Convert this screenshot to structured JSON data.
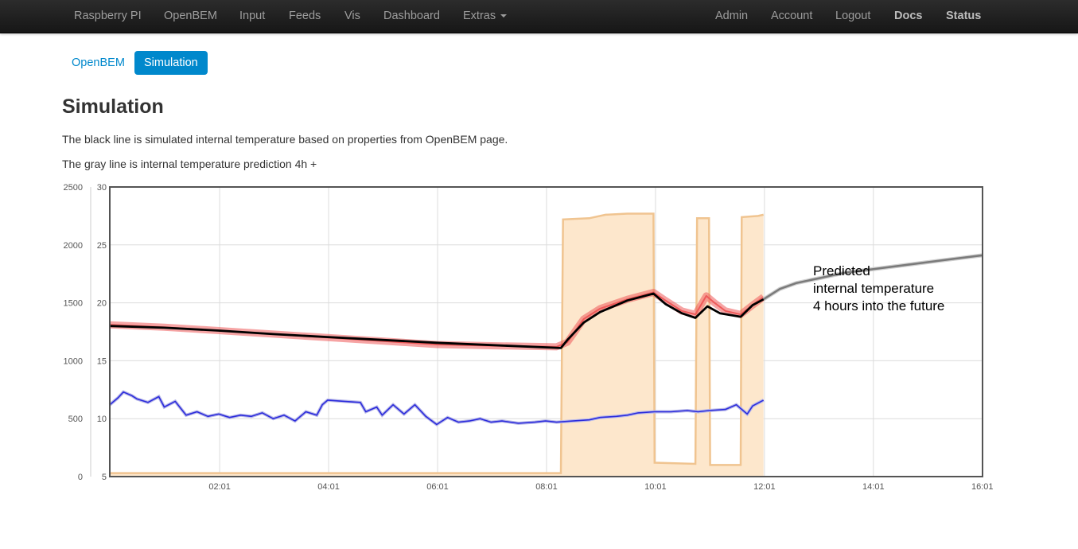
{
  "navbar": {
    "left": [
      {
        "label": "Raspberry PI"
      },
      {
        "label": "OpenBEM"
      },
      {
        "label": "Input"
      },
      {
        "label": "Feeds"
      },
      {
        "label": "Vis"
      },
      {
        "label": "Dashboard"
      },
      {
        "label": "Extras"
      }
    ],
    "right": [
      {
        "label": "Admin"
      },
      {
        "label": "Account"
      },
      {
        "label": "Logout"
      },
      {
        "label": "Docs"
      },
      {
        "label": "Status"
      }
    ]
  },
  "subnav": {
    "tabs": [
      {
        "label": "OpenBEM",
        "active": false
      },
      {
        "label": "Simulation",
        "active": true
      }
    ]
  },
  "page": {
    "title": "Simulation",
    "desc1": "The black line is simulated internal temperature based on properties from OpenBEM page.",
    "desc2": "The gray line is internal temperature prediction 4h +"
  },
  "chart_data": {
    "type": "line",
    "annotation": [
      "Predicted",
      "internal temperature",
      "4 hours into the future"
    ],
    "x_ticks": [
      "02:01",
      "04:01",
      "06:01",
      "08:01",
      "10:01",
      "12:01",
      "14:01",
      "16:01"
    ],
    "xlim_hours": [
      0.0,
      16.02
    ],
    "y_left": {
      "ticks": [
        0,
        500,
        1000,
        1500,
        2000,
        2500
      ],
      "range": [
        0,
        2500
      ]
    },
    "y_right": {
      "ticks": [
        5,
        10,
        15,
        20,
        25,
        30
      ],
      "range": [
        5,
        30
      ]
    },
    "grid": true,
    "colors": {
      "power": "#f0c490",
      "power_fill": "#fde7cc",
      "measured": "#ee5a5a",
      "simulated": "#000000",
      "prediction": "#7a7a7a",
      "external": "#2b2bdc"
    },
    "series": [
      {
        "key": "power",
        "axis": "left",
        "points": [
          [
            0,
            30
          ],
          [
            8.28,
            30
          ],
          [
            8.32,
            2220
          ],
          [
            8.8,
            2230
          ],
          [
            9.1,
            2260
          ],
          [
            9.5,
            2270
          ],
          [
            9.98,
            2270
          ],
          [
            10.0,
            120
          ],
          [
            10.75,
            110
          ],
          [
            10.78,
            2230
          ],
          [
            11.0,
            2230
          ],
          [
            11.02,
            100
          ],
          [
            11.58,
            100
          ],
          [
            11.6,
            2240
          ],
          [
            11.9,
            2250
          ],
          [
            12.0,
            2260
          ]
        ]
      },
      {
        "key": "measured",
        "axis": "right",
        "points": [
          [
            0,
            18.1
          ],
          [
            1,
            17.9
          ],
          [
            2,
            17.6
          ],
          [
            3,
            17.3
          ],
          [
            4,
            17.0
          ],
          [
            5,
            16.7
          ],
          [
            6,
            16.4
          ],
          [
            7,
            16.3
          ],
          [
            8.2,
            16.2
          ],
          [
            8.4,
            16.6
          ],
          [
            8.7,
            18.6
          ],
          [
            9.0,
            19.5
          ],
          [
            9.5,
            20.3
          ],
          [
            9.98,
            20.9
          ],
          [
            10.2,
            20.2
          ],
          [
            10.5,
            19.3
          ],
          [
            10.75,
            19.0
          ],
          [
            10.95,
            20.6
          ],
          [
            11.1,
            20.0
          ],
          [
            11.3,
            19.3
          ],
          [
            11.58,
            19.0
          ],
          [
            11.8,
            19.8
          ],
          [
            12.0,
            20.5
          ]
        ]
      },
      {
        "key": "simulated",
        "axis": "right",
        "points": [
          [
            0,
            18.0
          ],
          [
            1,
            17.85
          ],
          [
            2,
            17.6
          ],
          [
            3,
            17.3
          ],
          [
            4,
            17.05
          ],
          [
            5,
            16.8
          ],
          [
            6,
            16.55
          ],
          [
            7,
            16.35
          ],
          [
            8.28,
            16.1
          ],
          [
            8.4,
            16.8
          ],
          [
            8.7,
            18.3
          ],
          [
            9.0,
            19.2
          ],
          [
            9.5,
            20.2
          ],
          [
            9.98,
            20.8
          ],
          [
            10.2,
            19.9
          ],
          [
            10.5,
            19.1
          ],
          [
            10.75,
            18.7
          ],
          [
            10.97,
            19.7
          ],
          [
            11.2,
            19.1
          ],
          [
            11.58,
            18.8
          ],
          [
            11.8,
            19.8
          ],
          [
            12.0,
            20.3
          ]
        ]
      },
      {
        "key": "prediction",
        "axis": "right",
        "points": [
          [
            12.0,
            20.3
          ],
          [
            12.3,
            21.2
          ],
          [
            12.6,
            21.7
          ],
          [
            13,
            22.1
          ],
          [
            13.5,
            22.6
          ],
          [
            14,
            22.9
          ],
          [
            14.5,
            23.2
          ],
          [
            15,
            23.5
          ],
          [
            15.5,
            23.8
          ],
          [
            16.02,
            24.1
          ]
        ]
      },
      {
        "key": "external",
        "axis": "left",
        "points": [
          [
            0,
            620
          ],
          [
            0.15,
            680
          ],
          [
            0.25,
            730
          ],
          [
            0.4,
            700
          ],
          [
            0.5,
            670
          ],
          [
            0.7,
            640
          ],
          [
            0.9,
            690
          ],
          [
            1.0,
            600
          ],
          [
            1.2,
            650
          ],
          [
            1.4,
            530
          ],
          [
            1.6,
            560
          ],
          [
            1.8,
            520
          ],
          [
            2.0,
            540
          ],
          [
            2.2,
            510
          ],
          [
            2.4,
            530
          ],
          [
            2.6,
            520
          ],
          [
            2.8,
            550
          ],
          [
            3.0,
            500
          ],
          [
            3.2,
            530
          ],
          [
            3.4,
            480
          ],
          [
            3.6,
            560
          ],
          [
            3.8,
            530
          ],
          [
            3.9,
            620
          ],
          [
            4.0,
            660
          ],
          [
            4.3,
            650
          ],
          [
            4.6,
            640
          ],
          [
            4.7,
            560
          ],
          [
            4.9,
            600
          ],
          [
            5.0,
            530
          ],
          [
            5.2,
            620
          ],
          [
            5.4,
            540
          ],
          [
            5.6,
            620
          ],
          [
            5.8,
            520
          ],
          [
            6.0,
            450
          ],
          [
            6.2,
            510
          ],
          [
            6.4,
            470
          ],
          [
            6.6,
            480
          ],
          [
            6.8,
            500
          ],
          [
            7.0,
            470
          ],
          [
            7.2,
            480
          ],
          [
            7.5,
            460
          ],
          [
            7.8,
            470
          ],
          [
            8.0,
            480
          ],
          [
            8.2,
            470
          ],
          [
            8.5,
            480
          ],
          [
            8.8,
            490
          ],
          [
            9.0,
            510
          ],
          [
            9.3,
            520
          ],
          [
            9.5,
            530
          ],
          [
            9.7,
            550
          ],
          [
            10.0,
            560
          ],
          [
            10.3,
            560
          ],
          [
            10.6,
            570
          ],
          [
            10.8,
            560
          ],
          [
            11.0,
            570
          ],
          [
            11.3,
            580
          ],
          [
            11.5,
            620
          ],
          [
            11.7,
            540
          ],
          [
            11.8,
            610
          ],
          [
            12.0,
            660
          ]
        ]
      }
    ]
  }
}
